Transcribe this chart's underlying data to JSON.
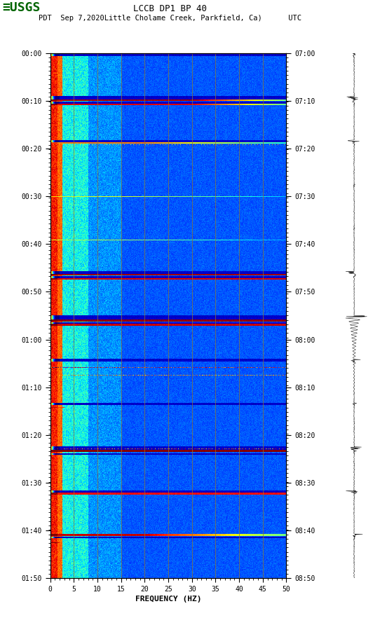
{
  "title_line1": "LCCB DP1 BP 40",
  "title_line2": "PDT  Sep 7,2020Little Cholame Creek, Parkfield, Ca)      UTC",
  "xlabel": "FREQUENCY (HZ)",
  "freq_min": 0,
  "freq_max": 50,
  "freq_ticks": [
    0,
    5,
    10,
    15,
    20,
    25,
    30,
    35,
    40,
    45,
    50
  ],
  "freq_tick_labels": [
    "0",
    "5",
    "10",
    "15",
    "20",
    "25",
    "30",
    "35",
    "40",
    "45",
    "50"
  ],
  "freq_gridlines": [
    5,
    10,
    15,
    20,
    25,
    30,
    35,
    40,
    45
  ],
  "left_time_labels": [
    "00:00",
    "00:10",
    "00:20",
    "00:30",
    "00:40",
    "00:50",
    "01:00",
    "01:10",
    "01:20",
    "01:30",
    "01:40",
    "01:50"
  ],
  "right_time_labels": [
    "07:00",
    "07:10",
    "07:20",
    "07:30",
    "07:40",
    "07:50",
    "08:00",
    "08:10",
    "08:20",
    "08:30",
    "08:40",
    "08:50"
  ],
  "n_time_rows": 660,
  "n_freq_cols": 400,
  "background_color": "#ffffff",
  "spectrogram_cmap": "jet",
  "logo_color": "#006400",
  "font_family": "monospace",
  "fig_width": 5.52,
  "fig_height": 8.92,
  "dpi": 100,
  "gridline_color": "#8B7536",
  "dark_col_color": 0.05,
  "base_blue": 0.18
}
